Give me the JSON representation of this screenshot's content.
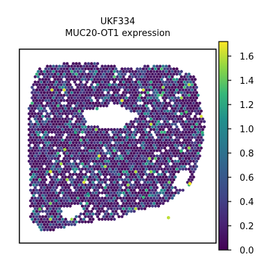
{
  "chart_data": {
    "type": "scatter",
    "title_lines": [
      "UKF334",
      "MUC20-OT1 expression"
    ],
    "xlabel": "",
    "ylabel": "",
    "marker": "hexagon",
    "colormap": "viridis",
    "colorbar": {
      "range": [
        0.0,
        1.72
      ],
      "ticks": [
        0.0,
        0.2,
        0.4,
        0.6,
        0.8,
        1.0,
        1.2,
        1.4,
        1.6
      ],
      "tick_labels": [
        "0.0",
        "0.2",
        "0.4",
        "0.6",
        "0.8",
        "1.0",
        "1.2",
        "1.4",
        "1.6"
      ]
    },
    "spot_value_distribution": [
      {
        "range": [
          0.0,
          0.15
        ],
        "share": 0.55
      },
      {
        "range": [
          0.15,
          0.5
        ],
        "share": 0.28
      },
      {
        "range": [
          0.5,
          0.9
        ],
        "share": 0.12
      },
      {
        "range": [
          0.9,
          1.3
        ],
        "share": 0.04
      },
      {
        "range": [
          1.3,
          1.7
        ],
        "share": 0.01
      }
    ],
    "notable_points": [
      {
        "x": 0.9,
        "y": 0.28,
        "value": 1.7
      },
      {
        "x": 0.12,
        "y": 0.35,
        "value": 1.65
      },
      {
        "x": 0.2,
        "y": 0.48,
        "value": 1.55
      },
      {
        "x": 0.78,
        "y": 0.08,
        "value": 1.6
      },
      {
        "x": 0.06,
        "y": 0.13,
        "value": 1.4
      },
      {
        "x": 0.88,
        "y": 0.7,
        "value": 1.35
      },
      {
        "x": 0.64,
        "y": 0.2,
        "value": 1.3
      },
      {
        "x": 0.97,
        "y": 0.58,
        "value": 1.25
      },
      {
        "x": 0.38,
        "y": 0.72,
        "value": 1.2
      },
      {
        "x": 0.85,
        "y": 0.47,
        "value": 1.3
      },
      {
        "x": 0.45,
        "y": 0.86,
        "value": 1.15
      },
      {
        "x": 0.26,
        "y": 0.58,
        "value": 1.2
      },
      {
        "x": 0.7,
        "y": 0.35,
        "value": 1.1
      },
      {
        "x": 0.55,
        "y": 0.55,
        "value": 1.1
      },
      {
        "x": 0.33,
        "y": 0.22,
        "value": 1.05
      },
      {
        "x": 0.15,
        "y": 0.18,
        "value": 1.0
      }
    ]
  }
}
